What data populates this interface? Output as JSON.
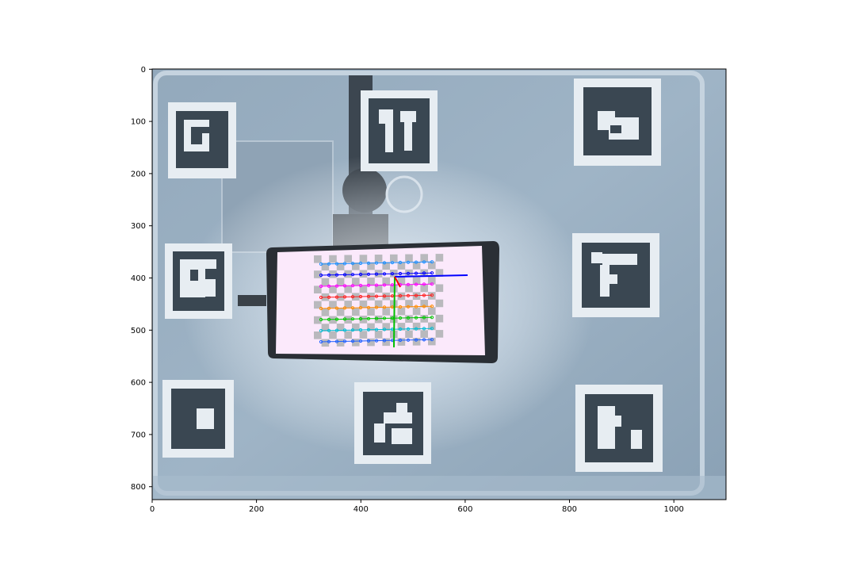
{
  "axes": {
    "x_ticks": [
      "0",
      "200",
      "400",
      "600",
      "800",
      "1000"
    ],
    "y_ticks": [
      "0",
      "100",
      "200",
      "300",
      "400",
      "500",
      "600",
      "700",
      "800"
    ],
    "x_range": [
      0,
      1100
    ],
    "y_range": [
      825,
      0
    ]
  },
  "image": {
    "description_name": "camera-frame",
    "background_color": "#8ea4b8",
    "frame_color": "#c9d6e2",
    "marker_dark": "#3b4a57",
    "marker_light": "#e6ecf1",
    "phone_screen_color": "#fbe9fb",
    "grid_line_colors": [
      "#1e90ff",
      "#0000ff",
      "#ff00ff",
      "#ff2020",
      "#ff8c00",
      "#00c800",
      "#00bcd4",
      "#1e60ff"
    ],
    "axis_colors": {
      "x": "#0000ff",
      "y": "#00c000",
      "z": "#ff0000"
    }
  }
}
